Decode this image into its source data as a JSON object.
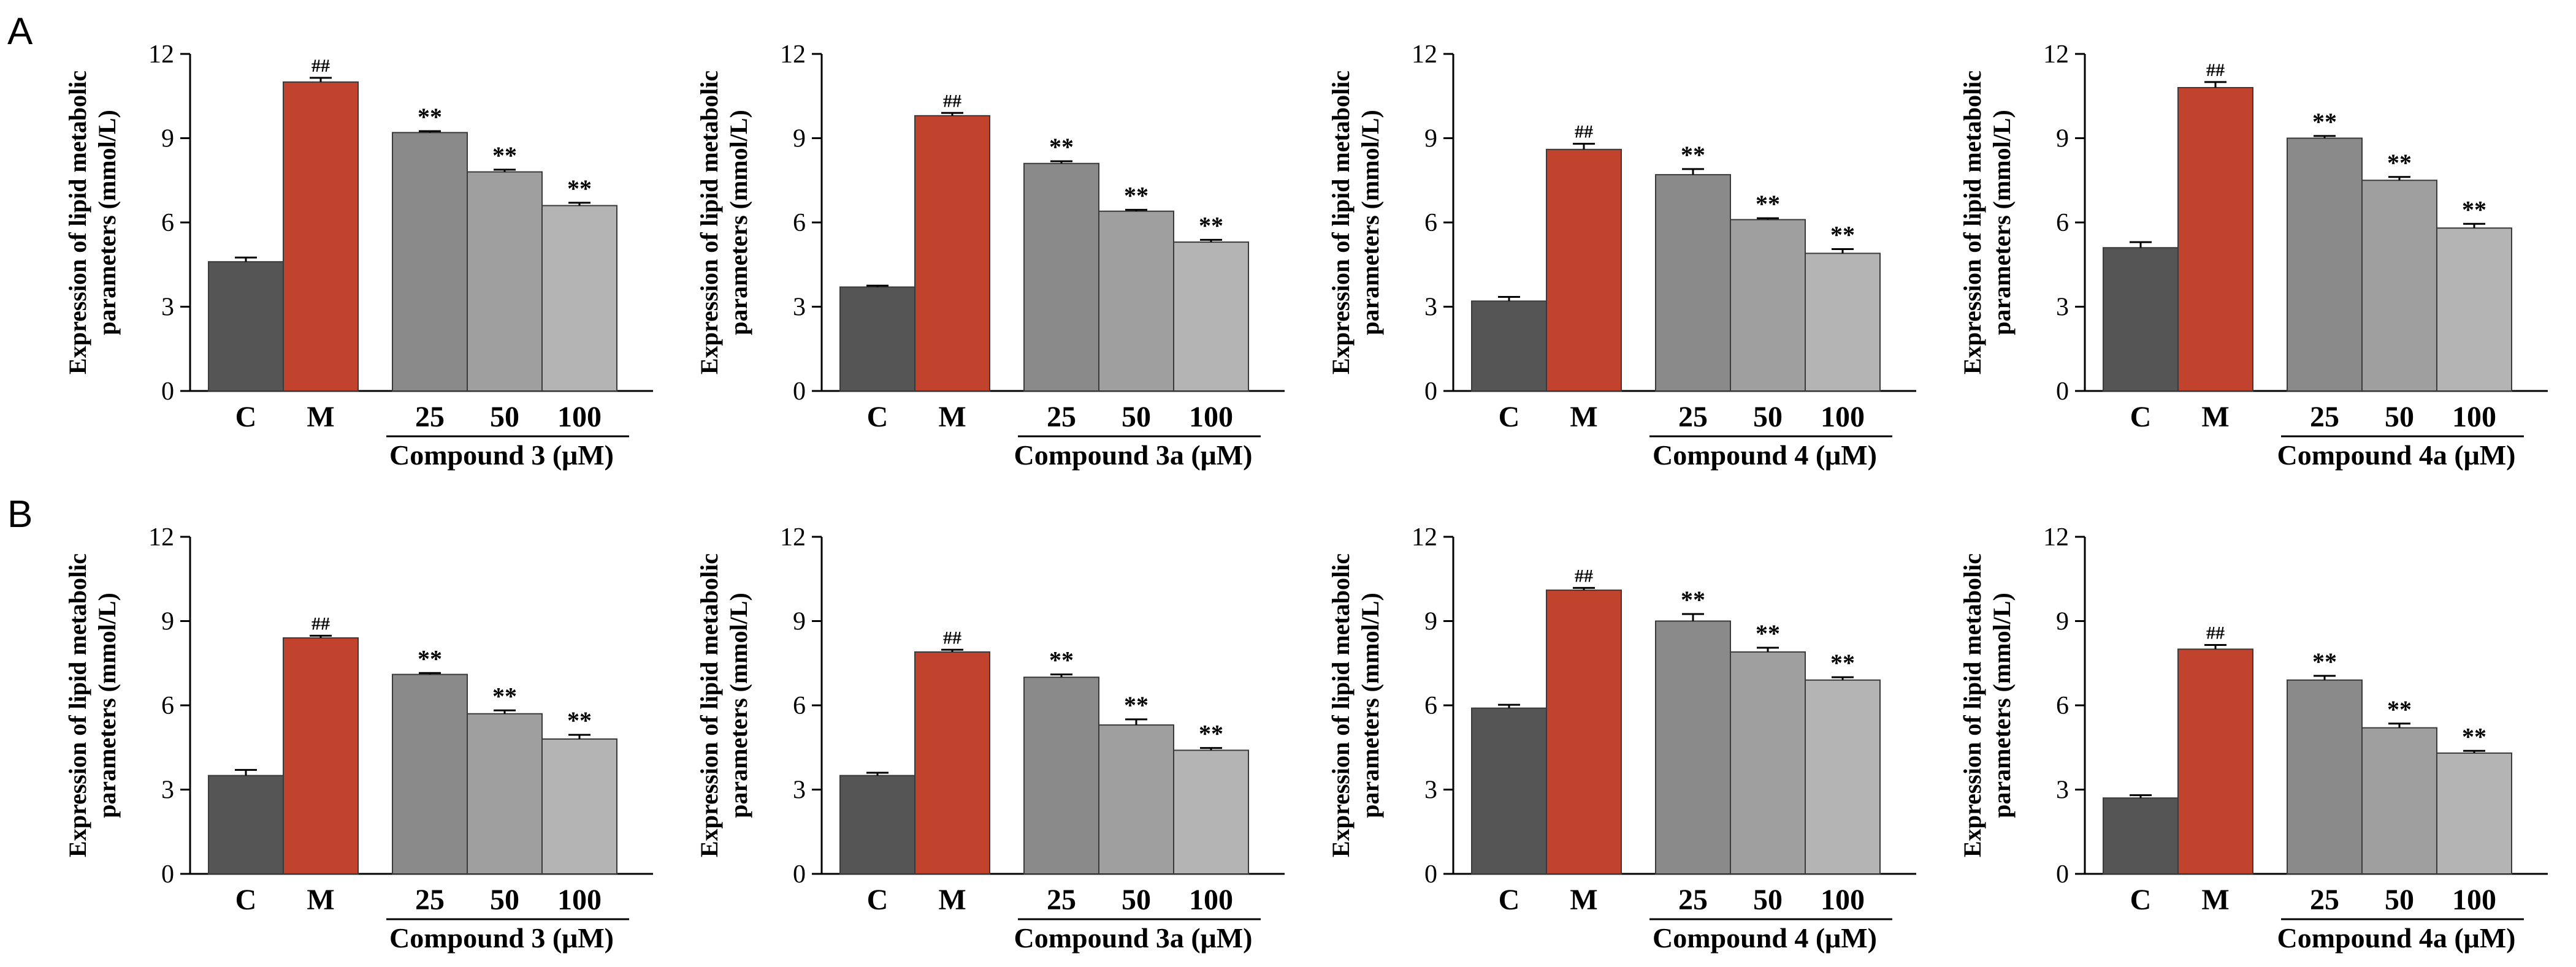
{
  "ylabel_line1": "Expression of lipid metabolic",
  "ylabel_line2": "parameters (mmol/L)",
  "yticks": [
    "0",
    "3",
    "6",
    "9",
    "12"
  ],
  "ylim": [
    0,
    12
  ],
  "categories": [
    "C",
    "M",
    "25",
    "50",
    "100"
  ],
  "colors": [
    "#555555",
    "#c1432e",
    "#8a8a8a",
    "#9f9f9f",
    "#b4b4b4"
  ],
  "sig_marks": [
    "",
    "##",
    "**",
    "**",
    "**"
  ],
  "rows": [
    "A",
    "B"
  ],
  "chart_data": [
    {
      "type": "bar",
      "row": "A",
      "group_label": "Compound 3 (μM)",
      "categories": [
        "C",
        "M",
        "25",
        "50",
        "100"
      ],
      "values": [
        4.6,
        11.0,
        9.2,
        7.8,
        6.6
      ],
      "errors": [
        0.15,
        0.15,
        0.05,
        0.08,
        0.1
      ],
      "ylabel": "Expression of lipid metabolic parameters (mmol/L)",
      "ylim": [
        0,
        12
      ]
    },
    {
      "type": "bar",
      "row": "A",
      "group_label": "Compound 3a (μM)",
      "categories": [
        "C",
        "M",
        "25",
        "50",
        "100"
      ],
      "values": [
        3.7,
        9.8,
        8.1,
        6.4,
        5.3
      ],
      "errors": [
        0.05,
        0.1,
        0.08,
        0.05,
        0.08
      ],
      "ylabel": "Expression of lipid metabolic parameters (mmol/L)",
      "ylim": [
        0,
        12
      ]
    },
    {
      "type": "bar",
      "row": "A",
      "group_label": "Compound 4 (μM)",
      "categories": [
        "C",
        "M",
        "25",
        "50",
        "100"
      ],
      "values": [
        3.2,
        8.6,
        7.7,
        6.1,
        4.9
      ],
      "errors": [
        0.15,
        0.2,
        0.2,
        0.05,
        0.15
      ],
      "ylabel": "Expression of lipid metabolic parameters (mmol/L)",
      "ylim": [
        0,
        12
      ]
    },
    {
      "type": "bar",
      "row": "A",
      "group_label": "Compound 4a (μM)",
      "categories": [
        "C",
        "M",
        "25",
        "50",
        "100"
      ],
      "values": [
        5.1,
        10.8,
        9.0,
        7.5,
        5.8
      ],
      "errors": [
        0.2,
        0.2,
        0.08,
        0.12,
        0.15
      ],
      "ylabel": "Expression of lipid metabolic parameters (mmol/L)",
      "ylim": [
        0,
        12
      ]
    },
    {
      "type": "bar",
      "row": "B",
      "group_label": "Compound 3 (μM)",
      "categories": [
        "C",
        "M",
        "25",
        "50",
        "100"
      ],
      "values": [
        3.5,
        8.4,
        7.1,
        5.7,
        4.8
      ],
      "errors": [
        0.2,
        0.08,
        0.05,
        0.12,
        0.15
      ],
      "ylabel": "Expression of lipid metabolic parameters (mmol/L)",
      "ylim": [
        0,
        12
      ]
    },
    {
      "type": "bar",
      "row": "B",
      "group_label": "Compound 3a (μM)",
      "categories": [
        "C",
        "M",
        "25",
        "50",
        "100"
      ],
      "values": [
        3.5,
        7.9,
        7.0,
        5.3,
        4.4
      ],
      "errors": [
        0.1,
        0.08,
        0.1,
        0.2,
        0.08
      ],
      "ylabel": "Expression of lipid metabolic parameters (mmol/L)",
      "ylim": [
        0,
        12
      ]
    },
    {
      "type": "bar",
      "row": "B",
      "group_label": "Compound 4 (μM)",
      "categories": [
        "C",
        "M",
        "25",
        "50",
        "100"
      ],
      "values": [
        5.9,
        10.1,
        9.0,
        7.9,
        6.9
      ],
      "errors": [
        0.12,
        0.08,
        0.25,
        0.15,
        0.1
      ],
      "ylabel": "Expression of lipid metabolic parameters (mmol/L)",
      "ylim": [
        0,
        12
      ]
    },
    {
      "type": "bar",
      "row": "B",
      "group_label": "Compound 4a (μM)",
      "categories": [
        "C",
        "M",
        "25",
        "50",
        "100"
      ],
      "values": [
        2.7,
        8.0,
        6.9,
        5.2,
        4.3
      ],
      "errors": [
        0.1,
        0.15,
        0.15,
        0.15,
        0.08
      ],
      "ylabel": "Expression of lipid metabolic parameters (mmol/L)",
      "ylim": [
        0,
        12
      ]
    }
  ]
}
